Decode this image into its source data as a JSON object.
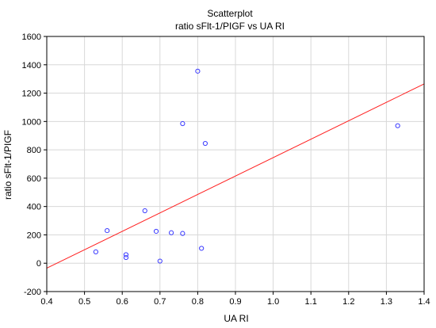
{
  "chart_data": {
    "type": "scatter",
    "title": "Scatterplot",
    "subtitle": "ratio sFlt-1/PIGF vs UA RI",
    "xlabel": "UA RI",
    "ylabel": "ratio sFlt-1/PIGF",
    "xlim": [
      0.4,
      1.4
    ],
    "ylim": [
      -200,
      1600
    ],
    "xticks": [
      "0.4",
      "0.5",
      "0.6",
      "0.7",
      "0.8",
      "0.9",
      "1.0",
      "1.1",
      "1.2",
      "1.3",
      "1.4"
    ],
    "yticks": [
      "-200",
      "0",
      "200",
      "400",
      "600",
      "800",
      "1000",
      "1200",
      "1400",
      "1600"
    ],
    "grid": true,
    "series": [
      {
        "marker": "circle-open",
        "color": "#3a3aff",
        "points": [
          {
            "x": 0.53,
            "y": 80
          },
          {
            "x": 0.56,
            "y": 230
          },
          {
            "x": 0.61,
            "y": 60
          },
          {
            "x": 0.61,
            "y": 40
          },
          {
            "x": 0.66,
            "y": 370
          },
          {
            "x": 0.69,
            "y": 225
          },
          {
            "x": 0.7,
            "y": 15
          },
          {
            "x": 0.73,
            "y": 215
          },
          {
            "x": 0.76,
            "y": 985
          },
          {
            "x": 0.76,
            "y": 210
          },
          {
            "x": 0.8,
            "y": 1355
          },
          {
            "x": 0.81,
            "y": 105
          },
          {
            "x": 0.82,
            "y": 845
          },
          {
            "x": 1.33,
            "y": 970
          }
        ]
      }
    ],
    "fit_line": {
      "color": "#ff2020",
      "from": {
        "x": 0.4,
        "y": -35
      },
      "to": {
        "x": 1.4,
        "y": 1265
      }
    }
  }
}
